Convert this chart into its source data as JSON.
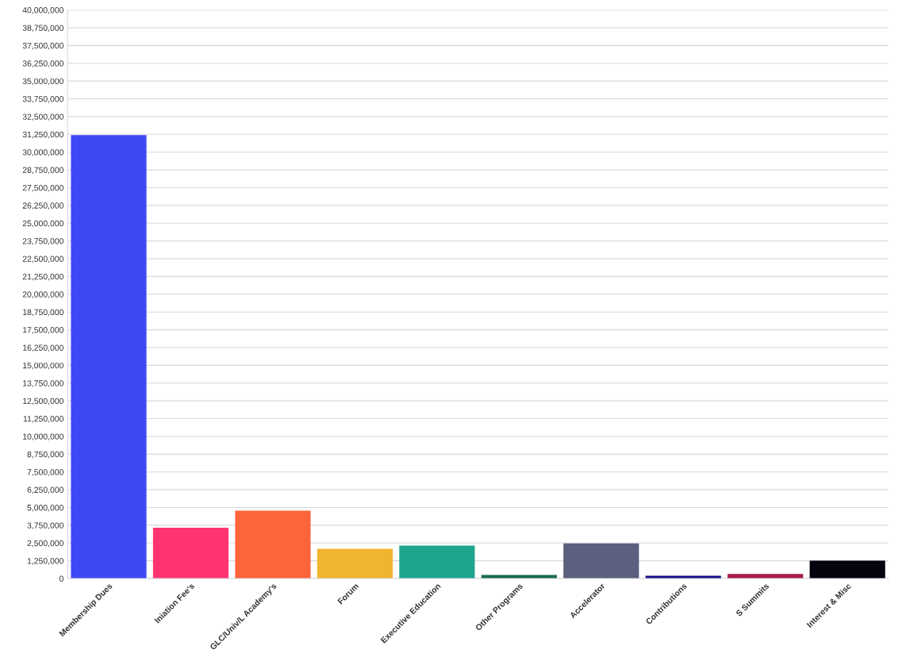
{
  "chart_data": {
    "type": "bar",
    "categories": [
      "Membership Dues",
      "Iniation Fee's",
      "GLC/Univ/L Academy's",
      "Forum",
      "Executive Education",
      "Other Programs",
      "Accelerator",
      "Contributions",
      "S Summits",
      "Interest & Misc"
    ],
    "values": [
      31200000,
      3580000,
      4780000,
      2090000,
      2320000,
      260000,
      2480000,
      200000,
      320000,
      1260000
    ],
    "colors": [
      "#3f48f5",
      "#ff3470",
      "#fc653b",
      "#f0b530",
      "#1fa58e",
      "#1b6b50",
      "#5c5f7e",
      "#1a0e86",
      "#a61d45",
      "#03030e"
    ],
    "ylim": [
      0,
      40000000
    ],
    "yticks": [
      {
        "value": 0,
        "label": "0"
      },
      {
        "value": 1250000,
        "label": "1,250,000"
      },
      {
        "value": 2500000,
        "label": "2,500,000"
      },
      {
        "value": 3750000,
        "label": "3,750,000"
      },
      {
        "value": 5000000,
        "label": "5,000,000"
      },
      {
        "value": 6250000,
        "label": "6,250,000"
      },
      {
        "value": 7500000,
        "label": "7,500,000"
      },
      {
        "value": 8750000,
        "label": "8,750,000"
      },
      {
        "value": 10000000,
        "label": "10,000,000"
      },
      {
        "value": 11250000,
        "label": "11,250,000"
      },
      {
        "value": 12500000,
        "label": "12,500,000"
      },
      {
        "value": 13750000,
        "label": "13,750,000"
      },
      {
        "value": 15000000,
        "label": "15,000,000"
      },
      {
        "value": 16250000,
        "label": "16,250,000"
      },
      {
        "value": 17500000,
        "label": "17,500,000"
      },
      {
        "value": 18750000,
        "label": "18,750,000"
      },
      {
        "value": 20000000,
        "label": "20,000,000"
      },
      {
        "value": 21250000,
        "label": "21,250,000"
      },
      {
        "value": 22500000,
        "label": "22,500,000"
      },
      {
        "value": 23750000,
        "label": "23,750,000"
      },
      {
        "value": 25000000,
        "label": "25,000,000"
      },
      {
        "value": 26250000,
        "label": "26,250,000"
      },
      {
        "value": 27500000,
        "label": "27,500,000"
      },
      {
        "value": 28750000,
        "label": "28,750,000"
      },
      {
        "value": 30000000,
        "label": "30,000,000"
      },
      {
        "value": 31250000,
        "label": "31,250,000"
      },
      {
        "value": 32500000,
        "label": "32,500,000"
      },
      {
        "value": 33750000,
        "label": "33,750,000"
      },
      {
        "value": 35000000,
        "label": "35,000,000"
      },
      {
        "value": 36250000,
        "label": "36,250,000"
      },
      {
        "value": 37500000,
        "label": "37,500,000"
      },
      {
        "value": 38750000,
        "label": "38,750,000"
      },
      {
        "value": 40000000,
        "label": "40,000,000"
      }
    ],
    "grid": "y"
  }
}
